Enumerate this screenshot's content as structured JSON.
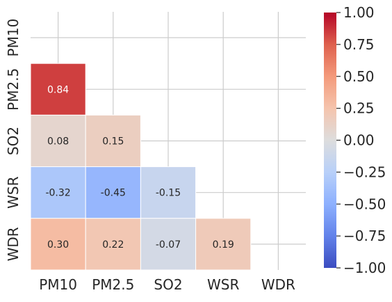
{
  "chart_data": {
    "type": "heatmap",
    "title": "",
    "xlabel": "",
    "ylabel": "",
    "labels": [
      "PM10",
      "PM2.5",
      "SO2",
      "WSR",
      "WDR"
    ],
    "cells": [
      {
        "row": 1,
        "col": 0,
        "value": 0.84,
        "text": "0.84"
      },
      {
        "row": 2,
        "col": 0,
        "value": 0.08,
        "text": "0.08"
      },
      {
        "row": 2,
        "col": 1,
        "value": 0.15,
        "text": "0.15"
      },
      {
        "row": 3,
        "col": 0,
        "value": -0.32,
        "text": "-0.32"
      },
      {
        "row": 3,
        "col": 1,
        "value": -0.45,
        "text": "-0.45"
      },
      {
        "row": 3,
        "col": 2,
        "value": -0.15,
        "text": "-0.15"
      },
      {
        "row": 4,
        "col": 0,
        "value": 0.3,
        "text": "0.30"
      },
      {
        "row": 4,
        "col": 1,
        "value": 0.22,
        "text": "0.22"
      },
      {
        "row": 4,
        "col": 2,
        "value": -0.07,
        "text": "-0.07"
      },
      {
        "row": 4,
        "col": 3,
        "value": 0.19,
        "text": "0.19"
      }
    ],
    "mask": "upper-triangle-including-diagonal",
    "colormap": "coolwarm",
    "vmin": -1.0,
    "vmax": 1.0,
    "colorbar_ticks": [
      {
        "value": 1.0,
        "label": "1.00"
      },
      {
        "value": 0.75,
        "label": "0.75"
      },
      {
        "value": 0.5,
        "label": "0.50"
      },
      {
        "value": 0.25,
        "label": "0.25"
      },
      {
        "value": 0.0,
        "label": "0.00"
      },
      {
        "value": -0.25,
        "label": "−0.25"
      },
      {
        "value": -0.5,
        "label": "−0.50"
      },
      {
        "value": -0.75,
        "label": "−0.75"
      },
      {
        "value": -1.0,
        "label": "−1.00"
      }
    ],
    "grid": true,
    "colors": {
      "cold": "#3b4cc0",
      "neutral": "#dddddd",
      "hot": "#b40426",
      "grid": "#cccccc",
      "cell_border": "#ffffff",
      "text": "#262626"
    }
  }
}
